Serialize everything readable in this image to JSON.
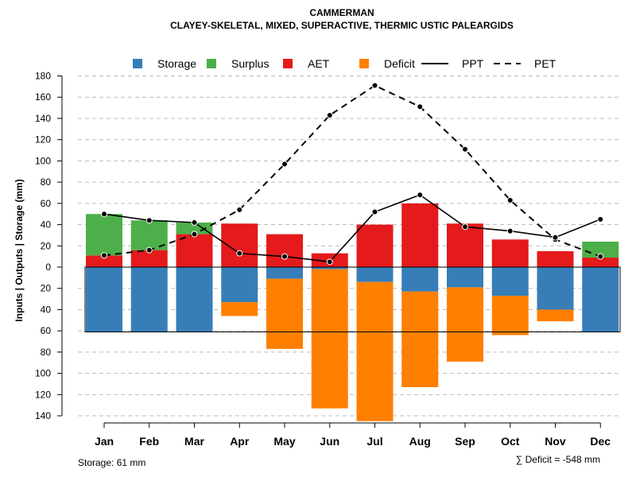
{
  "chart_data": {
    "type": "bar",
    "title": "CAMMERMAN",
    "subtitle": "CLAYEY-SKELETAL, MIXED, SUPERACTIVE, THERMIC USTIC PALEARGIDS",
    "ylabel": "Inputs | Outputs | Storage    (mm)",
    "categories": [
      "Jan",
      "Feb",
      "Mar",
      "Apr",
      "May",
      "Jun",
      "Jul",
      "Aug",
      "Sep",
      "Oct",
      "Nov",
      "Dec"
    ],
    "upper_ylim": [
      0,
      180
    ],
    "lower_ylim": [
      0,
      140
    ],
    "upper_ticks": [
      "0",
      "20",
      "40",
      "60",
      "80",
      "100",
      "120",
      "140",
      "160",
      "180"
    ],
    "lower_ticks": [
      "20",
      "40",
      "60",
      "80",
      "100",
      "120",
      "140"
    ],
    "grid": true,
    "legend": [
      {
        "label": "Storage",
        "color": "#377EB8",
        "type": "box"
      },
      {
        "label": "Surplus",
        "color": "#4DAF4A",
        "type": "box"
      },
      {
        "label": "AET",
        "color": "#E41A1C",
        "type": "box"
      },
      {
        "label": "Deficit",
        "color": "#FF7F00",
        "type": "box"
      },
      {
        "label": "PPT",
        "color": "#000000",
        "type": "solid"
      },
      {
        "label": "PET",
        "color": "#000000",
        "type": "dashed"
      }
    ],
    "series": [
      {
        "name": "AET",
        "color": "#E41A1C",
        "values": [
          11,
          16,
          31,
          41,
          31,
          13,
          40,
          60,
          41,
          26,
          15,
          9
        ]
      },
      {
        "name": "Surplus",
        "color": "#4DAF4A",
        "values": [
          39,
          28,
          11,
          0,
          0,
          0,
          0,
          0,
          0,
          0,
          0,
          15
        ]
      },
      {
        "name": "Storage",
        "color": "#377EB8",
        "values": [
          61,
          61,
          61,
          33,
          11,
          2,
          14,
          23,
          19,
          27,
          40,
          61
        ]
      },
      {
        "name": "Deficit",
        "color": "#FF7F00",
        "values": [
          0,
          0,
          0,
          13,
          66,
          131,
          131,
          90,
          70,
          37,
          11,
          0
        ]
      },
      {
        "name": "PPT",
        "color": "#000000",
        "style": "solid",
        "values": [
          50,
          44,
          42,
          13,
          10,
          5,
          52,
          68,
          38,
          34,
          28,
          45
        ]
      },
      {
        "name": "PET",
        "color": "#000000",
        "style": "dashed",
        "values": [
          11,
          16,
          31,
          54,
          97,
          143,
          171,
          151,
          111,
          63,
          26,
          10
        ]
      }
    ],
    "storage_capacity": 61
  },
  "footer": {
    "storage": "Storage: 61 mm",
    "deficit": "∑ Deficit = -548 mm"
  }
}
